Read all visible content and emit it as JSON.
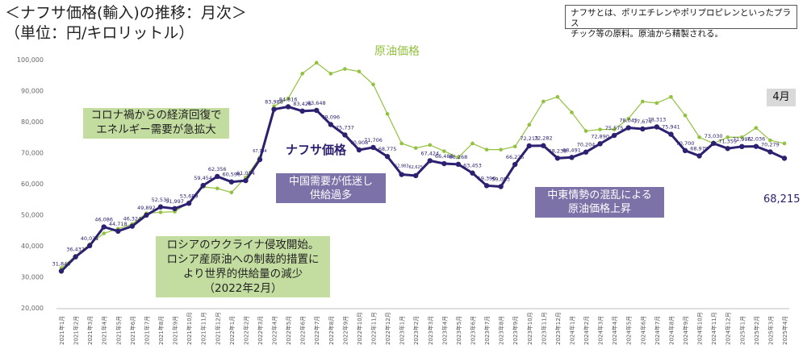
{
  "title": {
    "line1": "＜ナフサ価格(輸入)の推移：月次＞",
    "line2": "（単位：円/キロリットル）"
  },
  "note": {
    "line1": "ナフサとは、ポリエチレンやポリプロピレンといったプラス",
    "line2": "チック等の原料。原油から精製される。"
  },
  "latest_month": "4月",
  "latest_value": "68,215",
  "annotations": {
    "covid": [
      "コロナ禍からの経済回復で",
      "エネルギー需要が急拡大"
    ],
    "russia": [
      "ロシアのウクライナ侵攻開始。",
      "ロシア産原油への制裁的措置に",
      "より世界的供給量の減少",
      "（2022年2月）"
    ],
    "china": [
      "中国需要が低迷し",
      "供給過多"
    ],
    "mideast": [
      "中東情勢の混乱による",
      "原油価格上昇"
    ]
  },
  "colors": {
    "naphtha": "#2b2170",
    "crude": "#92c13e",
    "green_box": "#c3dca0",
    "purple_box": "#7d72a8"
  },
  "chart_data": {
    "type": "line",
    "ylim": [
      20000,
      100000
    ],
    "yticks": [
      "20,000",
      "30,000",
      "40,000",
      "50,000",
      "60,000",
      "70,000",
      "80,000",
      "90,000",
      "100,000"
    ],
    "categories": [
      "2021年1月",
      "2021年2月",
      "2021年3月",
      "2021年4月",
      "2021年5月",
      "2021年6月",
      "2021年7月",
      "2021年8月",
      "2021年9月",
      "2021年10月",
      "2021年11月",
      "2021年12月",
      "2022年1月",
      "2022年2月",
      "2022年3月",
      "2022年4月",
      "2022年5月",
      "2022年6月",
      "2022年7月",
      "2022年8月",
      "2022年9月",
      "2022年10月",
      "2022年11月",
      "2022年12月",
      "2023年1月",
      "2023年2月",
      "2023年3月",
      "2023年4月",
      "2023年5月",
      "2023年6月",
      "2023年7月",
      "2023年8月",
      "2023年9月",
      "2023年10月",
      "2023年11月",
      "2023年12月",
      "2024年1月",
      "2024年2月",
      "2024年3月",
      "2024年4月",
      "2024年5月",
      "2024年6月",
      "2024年7月",
      "2024年8月",
      "2024年9月",
      "2024年10月",
      "2024年11月",
      "2024年12月",
      "2025年1月",
      "2025年2月",
      "2025年3月",
      "2025年4月"
    ],
    "series": [
      {
        "name": "ナフサ価格",
        "values": [
          31845,
          36432,
          40031,
          46086,
          44718,
          46324,
          49892,
          52531,
          51997,
          53689,
          59454,
          62356,
          60596,
          61014,
          67794,
          83988,
          84816,
          83426,
          83648,
          79096,
          75737,
          70908,
          71706,
          68775,
          62983,
          62625,
          67424,
          66488,
          66268,
          63453,
          59396,
          59083,
          66225,
          72213,
          72282,
          68238,
          68491,
          70204,
          72890,
          75575,
          78045,
          77674,
          78313,
          75941,
          70700,
          68979,
          73030,
          71359,
          71996,
          72036,
          70279,
          68215
        ],
        "labels": [
          "31,845",
          "36,432",
          "40,031",
          "46,086",
          "44,718",
          "46,324",
          "49,892",
          "52,531",
          "51,997",
          "53,689",
          "59,454",
          "62,356",
          "60,596",
          "61,014",
          "67,794",
          "83,988",
          "84,816",
          "83,426",
          "83,648",
          "79,096",
          "75,737",
          "70,908",
          "71,706",
          "68,775",
          "62,983",
          "62,625",
          "67,424",
          "66,488",
          "66,268",
          "63,453",
          "59,396",
          "59,083",
          "66,225",
          "72,213",
          "72,282",
          "68,238",
          "68,491",
          "70,204",
          "72,890",
          "75,575",
          "78,045",
          "77,674",
          "78,313",
          "75,941",
          "70,700",
          "68,979",
          "73,030",
          "71,359",
          "71,996",
          "72,036",
          "70,279",
          ""
        ]
      },
      {
        "name": "原油価格",
        "values": [
          32800,
          36800,
          40500,
          44000,
          45500,
          47000,
          50500,
          50800,
          51000,
          54000,
          59000,
          58500,
          57200,
          62000,
          68500,
          85000,
          87500,
          95500,
          99000,
          95500,
          97000,
          96200,
          92000,
          82500,
          73000,
          71500,
          72500,
          70500,
          68500,
          73000,
          71000,
          71000,
          72000,
          79000,
          86500,
          88000,
          83000,
          77000,
          77500,
          77500,
          81000,
          86500,
          86000,
          88000,
          82000,
          75000,
          73000,
          75000,
          75000,
          78000,
          74000,
          73000
        ]
      }
    ]
  }
}
